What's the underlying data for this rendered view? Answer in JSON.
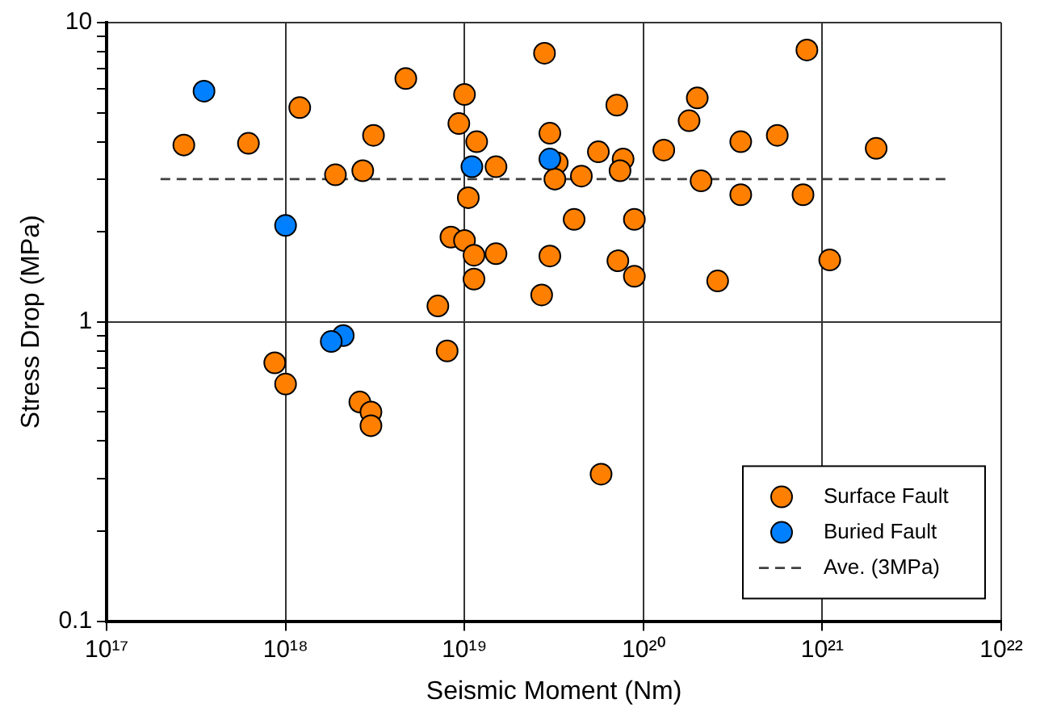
{
  "chart_data": {
    "type": "scatter",
    "xlabel": "Seismic Moment (Nm)",
    "ylabel": "Stress Drop (MPa)",
    "log": "xy",
    "grid": true,
    "legend": "bottom right",
    "marker": "circle",
    "xlim": [
      1e+17,
      1e+22
    ],
    "xticks": [
      {
        "value": 1e+17,
        "label": "10¹⁷"
      },
      {
        "value": 1e+18,
        "label": "10¹⁸"
      },
      {
        "value": 1e+19,
        "label": "10¹⁹"
      },
      {
        "value": 1e+20,
        "label": "10²⁰"
      },
      {
        "value": 1e+21,
        "label": "10²¹"
      },
      {
        "value": 1e+22,
        "label": "10²²"
      }
    ],
    "ylim": [
      0.1,
      10
    ],
    "yticks": [
      0.1,
      {
        "value": 0.2,
        "label": null
      },
      {
        "value": 0.3,
        "label": null
      },
      {
        "value": 0.4,
        "label": null
      },
      {
        "value": 0.5,
        "label": null
      },
      {
        "value": 0.6,
        "label": null
      },
      {
        "value": 0.7,
        "label": null
      },
      {
        "value": 0.8,
        "label": null
      },
      {
        "value": 0.9,
        "label": null
      },
      1,
      {
        "value": 2,
        "label": null
      },
      {
        "value": 3,
        "label": null
      },
      {
        "value": 4,
        "label": null
      },
      {
        "value": 5,
        "label": null
      },
      {
        "value": 6,
        "label": null
      },
      {
        "value": 7,
        "label": null
      },
      {
        "value": 8,
        "label": null
      },
      {
        "value": 9,
        "label": null
      },
      10
    ],
    "series": [
      {
        "name": "Surface Fault",
        "color": "#ff8000",
        "x": [
          2.7e+17,
          6.2e+17,
          1.2e+18,
          4.7e+18,
          3.1e+18,
          1.9e+18,
          2.7e+18,
          7.1e+18,
          8.4e+18,
          1e+19,
          9.3e+18,
          2.8e+19,
          1.17e+19,
          1.5e+19,
          1.05e+19,
          1e+19,
          1.13e+19,
          1.5e+19,
          1.13e+19,
          3e+19,
          3.3e+19,
          3.2e+19,
          4.5e+19,
          5.6e+19,
          7.1e+19,
          7.7e+19,
          7.4e+19,
          4.1e+19,
          8.9e+19,
          3e+19,
          7.2e+19,
          8.9e+19,
          2.7e+19,
          1.3e+20,
          2e+20,
          1.8e+20,
          2.1e+20,
          3.5e+20,
          3.5e+20,
          5.6e+20,
          7.8e+20,
          8.2e+20,
          2.6e+20,
          1.1e+21,
          2e+21,
          8.7e+17,
          1e+18,
          8e+18,
          2.6e+18,
          3e+18,
          3e+18,
          5.8e+19
        ],
        "values": [
          3.9,
          3.95,
          5.2,
          6.5,
          4.2,
          3.1,
          3.2,
          1.13,
          1.92,
          5.75,
          4.6,
          7.9,
          4.0,
          3.3,
          2.6,
          1.87,
          1.67,
          1.69,
          1.39,
          4.27,
          3.4,
          3.0,
          3.07,
          3.7,
          5.3,
          3.5,
          3.2,
          2.2,
          2.2,
          1.66,
          1.6,
          1.42,
          1.23,
          3.75,
          5.6,
          4.7,
          2.96,
          4.0,
          2.66,
          4.2,
          2.66,
          8.1,
          1.37,
          1.61,
          3.8,
          0.73,
          0.62,
          0.8,
          0.54,
          0.5,
          0.45,
          0.31
        ]
      },
      {
        "name": "Buried Fault",
        "color": "#0080ff",
        "x": [
          3.5e+17,
          1e+18,
          1.1e+19,
          3e+19,
          2.1e+18,
          1.8e+18
        ],
        "values": [
          5.9,
          2.1,
          3.3,
          3.5,
          0.9,
          0.86
        ]
      },
      {
        "name": "Ave. (3MPa)",
        "type": "line",
        "line_style": "dashed",
        "marker": "none",
        "color": "#404040",
        "x": [
          2e+17,
          5e+21
        ],
        "values": [
          3,
          3
        ]
      }
    ]
  }
}
